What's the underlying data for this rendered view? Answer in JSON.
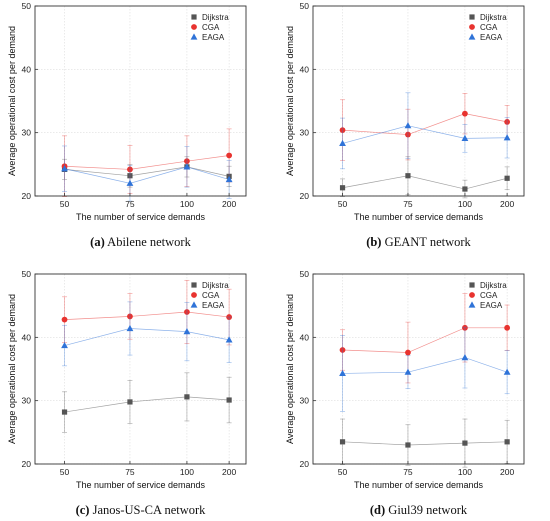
{
  "colors": {
    "Dijkstra": "#555555",
    "CGA": "#e8332f",
    "EAGA": "#2f73d8"
  },
  "chart_data": [
    {
      "type": "line",
      "caption_letter": "(a)",
      "caption_text": "Abilene network",
      "xlabel": "The number of service demands",
      "ylabel": "Average operational cost per demand",
      "categories": [
        "50",
        "75",
        "100",
        "200"
      ],
      "ylim": [
        20,
        50
      ],
      "yticks": [
        20,
        30,
        40,
        50
      ],
      "grid": true,
      "legend": "top-right",
      "series": [
        {
          "name": "Dijkstra",
          "marker": "square",
          "values": [
            24.2,
            23.2,
            24.6,
            23.1
          ],
          "errors": [
            1.6,
            1.8,
            1.6,
            1.6
          ]
        },
        {
          "name": "CGA",
          "marker": "circle",
          "values": [
            24.7,
            24.2,
            25.5,
            26.4
          ],
          "errors": [
            4.8,
            3.8,
            4.0,
            4.2
          ]
        },
        {
          "name": "EAGA",
          "marker": "triangle",
          "values": [
            24.3,
            22.0,
            24.6,
            22.6
          ],
          "errors": [
            3.6,
            2.8,
            3.2,
            3.0
          ]
        }
      ]
    },
    {
      "type": "line",
      "caption_letter": "(b)",
      "caption_text": "GEANT network",
      "xlabel": "The number of service demands",
      "ylabel": "Average operational cost per demand",
      "categories": [
        "50",
        "75",
        "100",
        "200"
      ],
      "ylim": [
        20,
        50
      ],
      "yticks": [
        20,
        30,
        40,
        50
      ],
      "grid": true,
      "legend": "top-right",
      "series": [
        {
          "name": "Dijkstra",
          "marker": "square",
          "values": [
            21.3,
            23.2,
            21.1,
            22.8
          ],
          "errors": [
            1.4,
            3.0,
            1.4,
            1.8
          ]
        },
        {
          "name": "CGA",
          "marker": "circle",
          "values": [
            30.4,
            29.7,
            33.0,
            31.7
          ],
          "errors": [
            4.8,
            4.0,
            3.2,
            2.6
          ]
        },
        {
          "name": "EAGA",
          "marker": "triangle",
          "values": [
            28.3,
            31.1,
            29.1,
            29.2
          ],
          "errors": [
            4.0,
            5.2,
            2.2,
            3.2
          ]
        }
      ]
    },
    {
      "type": "line",
      "caption_letter": "(c)",
      "caption_text": "Janos-US-CA network",
      "xlabel": "The number of service demands",
      "ylabel": "Average operational cost per demand",
      "categories": [
        "50",
        "75",
        "100",
        "200"
      ],
      "ylim": [
        20,
        50
      ],
      "yticks": [
        20,
        30,
        40,
        50
      ],
      "grid": true,
      "legend": "top-right",
      "series": [
        {
          "name": "Dijkstra",
          "marker": "square",
          "values": [
            28.2,
            29.8,
            30.6,
            30.1
          ],
          "errors": [
            3.2,
            3.4,
            3.8,
            3.6
          ]
        },
        {
          "name": "CGA",
          "marker": "circle",
          "values": [
            42.8,
            43.3,
            44.0,
            43.2
          ],
          "errors": [
            3.6,
            3.6,
            5.0,
            4.4
          ]
        },
        {
          "name": "EAGA",
          "marker": "triangle",
          "values": [
            38.7,
            41.4,
            40.9,
            39.6
          ],
          "errors": [
            3.2,
            4.2,
            4.6,
            3.6
          ]
        }
      ]
    },
    {
      "type": "line",
      "caption_letter": "(d)",
      "caption_text": "Giul39 network",
      "xlabel": "The number of service demands",
      "ylabel": "Average operational cost per demand",
      "categories": [
        "50",
        "75",
        "100",
        "200"
      ],
      "ylim": [
        20,
        50
      ],
      "yticks": [
        20,
        30,
        40,
        50
      ],
      "grid": true,
      "legend": "top-right",
      "series": [
        {
          "name": "Dijkstra",
          "marker": "square",
          "values": [
            23.5,
            23.0,
            23.3,
            23.5
          ],
          "errors": [
            3.6,
            3.2,
            3.8,
            3.4
          ]
        },
        {
          "name": "CGA",
          "marker": "circle",
          "values": [
            38.0,
            37.6,
            41.5,
            41.5
          ],
          "errors": [
            3.2,
            4.8,
            5.4,
            3.6
          ]
        },
        {
          "name": "EAGA",
          "marker": "triangle",
          "values": [
            34.3,
            34.5,
            36.8,
            34.5
          ],
          "errors": [
            6.0,
            2.6,
            4.8,
            3.4
          ]
        }
      ]
    }
  ]
}
